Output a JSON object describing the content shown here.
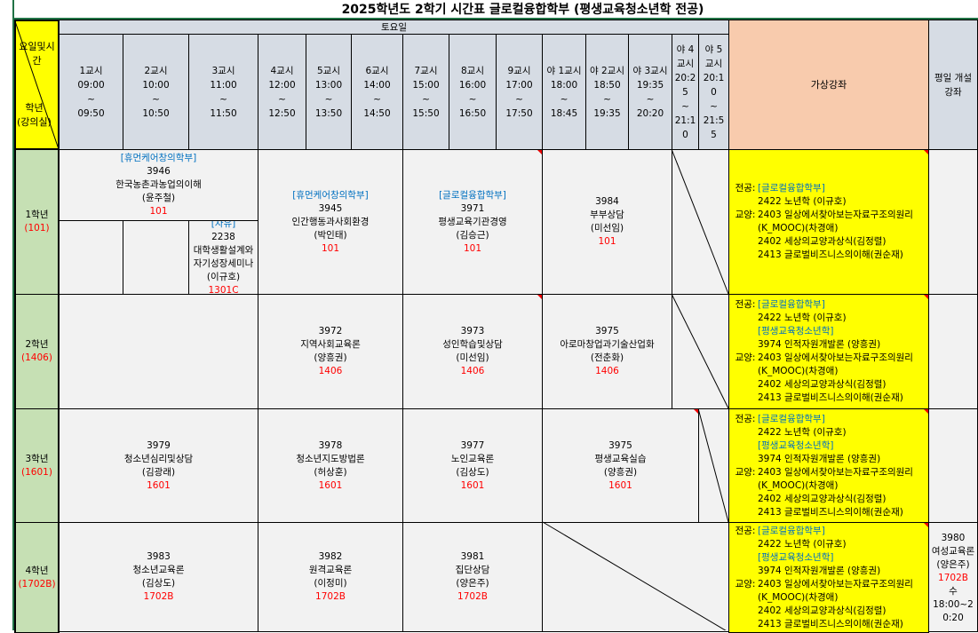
{
  "title": "2025학년도 2학기 시간표 글로컬융합학부 (평생교육청소년학 전공)",
  "header": {
    "corner_top": "요일및시간",
    "corner_bottom_1": "학년",
    "corner_bottom_2": "(강의실)",
    "day": "토요일",
    "virtual": "가상강좌",
    "weekday": "평일 개설 강좌",
    "periods": [
      {
        "name": "1교시",
        "start": "09:00",
        "sep": "~",
        "end": "09:50"
      },
      {
        "name": "2교시",
        "start": "10:00",
        "sep": "~",
        "end": "10:50"
      },
      {
        "name": "3교시",
        "start": "11:00",
        "sep": "~",
        "end": "11:50"
      },
      {
        "name": "4교시",
        "start": "12:00",
        "sep": "~",
        "end": "12:50"
      },
      {
        "name": "5교시",
        "start": "13:00",
        "sep": "~",
        "end": "13:50"
      },
      {
        "name": "6교시",
        "start": "14:00",
        "sep": "~",
        "end": "14:50"
      },
      {
        "name": "7교시",
        "start": "15:00",
        "sep": "~",
        "end": "15:50"
      },
      {
        "name": "8교시",
        "start": "16:00",
        "sep": "~",
        "end": "16:50"
      },
      {
        "name": "9교시",
        "start": "17:00",
        "sep": "~",
        "end": "17:50"
      },
      {
        "name": "야 1교시",
        "start": "18:00",
        "sep": "~",
        "end": "18:45"
      },
      {
        "name": "야 2교시",
        "start": "18:50",
        "sep": "~",
        "end": "19:35"
      },
      {
        "name": "야 3교시",
        "start": "19:35",
        "sep": "~",
        "end": "20:20"
      },
      {
        "name": "야 4교시",
        "start": "20:25",
        "sep": "~",
        "end": "21:10"
      },
      {
        "name": "야 5교시",
        "start": "20:10",
        "sep": "~",
        "end": "21:55"
      }
    ]
  },
  "grades": [
    {
      "label": "1학년",
      "room": "(101)"
    },
    {
      "label": "2학년",
      "room": "(1406)"
    },
    {
      "label": "3학년",
      "room": "(1601)"
    },
    {
      "label": "4학년",
      "room": "(1702B)"
    }
  ],
  "courses": [
    [
      {
        "dept": "[휴먼케어창의학부]",
        "code": "3946",
        "name": "한국농촌과농업의이해",
        "prof": "(윤주철)",
        "room": "101"
      },
      {
        "dept": "[자유]",
        "code": "2238",
        "name": "대학생활설계와 자기성장세미나",
        "prof": "(이규호)",
        "room": "1301C"
      },
      {
        "dept": "[휴먼케어창의학부]",
        "code": "3945",
        "name": "인간행동과사회환경",
        "prof": "(박인태)",
        "room": "101"
      },
      {
        "dept": "[글로컬융합학부]",
        "code": "3971",
        "name": "평생교육기관경영",
        "prof": "(김승근)",
        "room": "101"
      },
      {
        "code": "3984",
        "name": "부부상담",
        "prof": "(미선임)",
        "room": "101"
      }
    ],
    [
      {
        "code": "3972",
        "name": "지역사회교육론",
        "prof": "(양흥권)",
        "room": "1406"
      },
      {
        "code": "3973",
        "name": "성인학습및상담",
        "prof": "(미선임)",
        "room": "1406"
      },
      {
        "code": "3975",
        "name": "아로마창업과기술산업화",
        "prof": "(전춘화)",
        "room": "1406"
      }
    ],
    [
      {
        "code": "3979",
        "name": "청소년심리및상담",
        "prof": "(김광래)",
        "room": "1601"
      },
      {
        "code": "3978",
        "name": "청소년지도방법론",
        "prof": "(허상훈)",
        "room": "1601"
      },
      {
        "code": "3977",
        "name": "노인교육론",
        "prof": "(김상도)",
        "room": "1601"
      },
      {
        "code": "3975",
        "name": "평생교육실습",
        "prof": "(양흥권)",
        "room": "1601"
      }
    ],
    [
      {
        "code": "3983",
        "name": "청소년교육론",
        "prof": "(김상도)",
        "room": "1702B"
      },
      {
        "code": "3982",
        "name": "원격교육론",
        "prof": "(이정미)",
        "room": "1702B"
      },
      {
        "code": "3981",
        "name": "집단상담",
        "prof": "(양은주)",
        "room": "1702B"
      }
    ]
  ],
  "virtual": [
    [
      {
        "pre": "전공:",
        "text": "[글로컬융합학부]",
        "dept": true
      },
      {
        "pre": "",
        "text": "2422 노년학 (이규호)"
      },
      {
        "pre": "교양:",
        "text": "2403 일상에서찾아보는자료구조의원리"
      },
      {
        "pre": "",
        "text": "(K_MOOC)(차경애)"
      },
      {
        "pre": "",
        "text": "2402 세상의교양과상식(김정렬)"
      },
      {
        "pre": "",
        "text": "2413 글로벌비즈니스의이해(권순재)"
      }
    ],
    [
      {
        "pre": "전공:",
        "text": "[글로컬융합학부]",
        "dept": true
      },
      {
        "pre": "",
        "text": "2422 노년학 (이규호)"
      },
      {
        "pre": "",
        "text": "[평생교육청소년학]",
        "dept": true
      },
      {
        "pre": "",
        "text": "3974 인적자원개발론 (양흥권)"
      },
      {
        "pre": "교양:",
        "text": "2403 일상에서찾아보는자료구조의원리"
      },
      {
        "pre": "",
        "text": "(K_MOOC)(차경애)"
      },
      {
        "pre": "",
        "text": "2402 세상의교양과상식(김정렬)"
      },
      {
        "pre": "",
        "text": "2413 글로벌비즈니스의이해(권순재)"
      }
    ],
    [
      {
        "pre": "전공:",
        "text": "[글로컬융합학부]",
        "dept": true
      },
      {
        "pre": "",
        "text": "2422 노년학 (이규호)"
      },
      {
        "pre": "",
        "text": "[평생교육청소년학]",
        "dept": true
      },
      {
        "pre": "",
        "text": "3974 인적자원개발론 (양흥권)"
      },
      {
        "pre": "교양:",
        "text": "2403 일상에서찾아보는자료구조의원리"
      },
      {
        "pre": "",
        "text": "(K_MOOC)(차경애)"
      },
      {
        "pre": "",
        "text": "2402 세상의교양과상식(김정렬)"
      },
      {
        "pre": "",
        "text": "2413 글로벌비즈니스의이해(권순재)"
      }
    ],
    [
      {
        "pre": "전공:",
        "text": "[글로컬융합학부]",
        "dept": true
      },
      {
        "pre": "",
        "text": "2422 노년학 (이규호)"
      },
      {
        "pre": "",
        "text": "[평생교육청소년학]",
        "dept": true
      },
      {
        "pre": "",
        "text": "3974 인적자원개발론 (양흥권)"
      },
      {
        "pre": "교양:",
        "text": "2403 일상에서찾아보는자료구조의원리"
      },
      {
        "pre": "",
        "text": "(K_MOOC)(차경애)"
      },
      {
        "pre": "",
        "text": "2402 세상의교양과상식(김정렬)"
      },
      {
        "pre": "",
        "text": "2413 글로벌비즈니스의이해(권순재)"
      }
    ]
  ],
  "weekday_courses": {
    "grade4": {
      "code": "3980",
      "name": "여성교육론",
      "prof": "(양은주)",
      "room": "1702B",
      "day": "수",
      "time": "18:00~20:20"
    }
  },
  "colors": {
    "header": "#d6dce4",
    "corner": "#ffff00",
    "grade": "#c6e0b4",
    "virtual_header": "#f8cbad",
    "virtual": "#ffff00",
    "dept": "#0070c0",
    "room": "#ff0000",
    "frame": "#217346"
  }
}
